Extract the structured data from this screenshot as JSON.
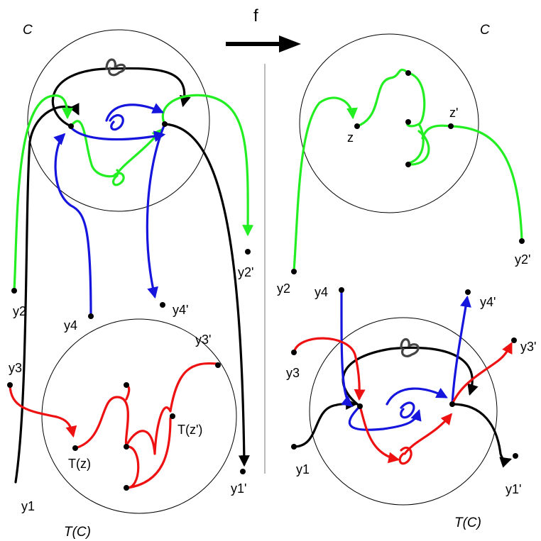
{
  "colors": {
    "black": "#000000",
    "green": "#22ee22",
    "blue": "#1515dd",
    "red": "#ee1111",
    "gray": "#444444"
  },
  "arrow": {
    "label": "f"
  },
  "left": {
    "top_region": "C",
    "bottom_region": "T(C)",
    "labels": {
      "y1": "y1",
      "y1p": "y1'",
      "y2": "y2",
      "y2p": "y2'",
      "y3": "y3",
      "y3p": "y3'",
      "y4": "y4",
      "y4p": "y4'",
      "tz": "T(z)",
      "tzp": "T(z')"
    }
  },
  "right": {
    "top_region": "C",
    "bottom_region": "T(C)",
    "labels": {
      "y1": "y1",
      "y1p": "y1'",
      "y2": "y2",
      "y2p": "y2'",
      "y3": "y3",
      "y3p": "y3'",
      "y4": "y4",
      "y4p": "y4'",
      "z": "z",
      "zp": "z'"
    }
  }
}
